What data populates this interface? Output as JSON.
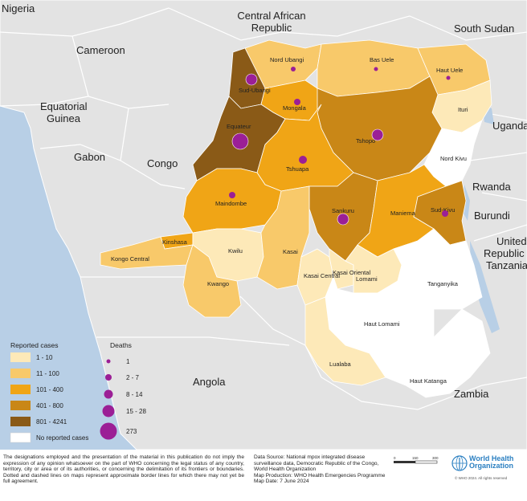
{
  "countries": {
    "nigeria": "Nigeria",
    "central_african_republic_l1": "Central African",
    "central_african_republic_l2": "Republic",
    "south_sudan": "South Sudan",
    "cameroon": "Cameroon",
    "equatorial_guinea_l1": "Equatorial",
    "equatorial_guinea_l2": "Guinea",
    "gabon": "Gabon",
    "congo": "Congo",
    "uganda": "Uganda",
    "rwanda": "Rwanda",
    "burundi": "Burundi",
    "tanzania_l1": "United",
    "tanzania_l2": "Republic of",
    "tanzania_l3": "Tanzania",
    "angola": "Angola",
    "zambia": "Zambia"
  },
  "provinces": [
    {
      "name": "Nord Ubangi",
      "cases_class": "11 - 100",
      "deaths_class": "1"
    },
    {
      "name": "Bas Uele",
      "cases_class": "11 - 100",
      "deaths_class": "1"
    },
    {
      "name": "Haut Uele",
      "cases_class": "11 - 100",
      "deaths_class": "1"
    },
    {
      "name": "Sud-Ubangi",
      "cases_class": "801 - 4241",
      "deaths_class": "15 - 28"
    },
    {
      "name": "Mongala",
      "cases_class": "101 - 400",
      "deaths_class": "2 - 7"
    },
    {
      "name": "Ituri",
      "cases_class": "1 - 10",
      "deaths_class": ""
    },
    {
      "name": "Equateur",
      "cases_class": "801 - 4241",
      "deaths_class": "273"
    },
    {
      "name": "Tshopo",
      "cases_class": "401 - 800",
      "deaths_class": "15 - 28"
    },
    {
      "name": "Nord Kivu",
      "cases_class": "No reported cases",
      "deaths_class": ""
    },
    {
      "name": "Tshuapa",
      "cases_class": "101 - 400",
      "deaths_class": "8 - 14"
    },
    {
      "name": "Maindombe",
      "cases_class": "101 - 400",
      "deaths_class": "2 - 7"
    },
    {
      "name": "Sankuru",
      "cases_class": "401 - 800",
      "deaths_class": "15 - 28"
    },
    {
      "name": "Maniema",
      "cases_class": "101 - 400",
      "deaths_class": ""
    },
    {
      "name": "Sud-Kivu",
      "cases_class": "401 - 800",
      "deaths_class": "2 - 7"
    },
    {
      "name": "Kinshasa",
      "cases_class": "101 - 400",
      "deaths_class": ""
    },
    {
      "name": "Kwilu",
      "cases_class": "1 - 10",
      "deaths_class": ""
    },
    {
      "name": "Kasai",
      "cases_class": "11 - 100",
      "deaths_class": ""
    },
    {
      "name": "Kongo Central",
      "cases_class": "11 - 100",
      "deaths_class": ""
    },
    {
      "name": "Kasai Central",
      "cases_class": "1 - 10",
      "deaths_class": ""
    },
    {
      "name": "Kasai Oriental",
      "cases_class": "1 - 10",
      "deaths_class": ""
    },
    {
      "name": "Lomami",
      "cases_class": "1 - 10",
      "deaths_class": ""
    },
    {
      "name": "Tanganyika",
      "cases_class": "No reported cases",
      "deaths_class": ""
    },
    {
      "name": "Kwango",
      "cases_class": "11 - 100",
      "deaths_class": ""
    },
    {
      "name": "Haut Lomami",
      "cases_class": "No reported cases",
      "deaths_class": ""
    },
    {
      "name": "Lualaba",
      "cases_class": "1 - 10",
      "deaths_class": ""
    },
    {
      "name": "Haut Katanga",
      "cases_class": "No reported cases",
      "deaths_class": ""
    }
  ],
  "legend": {
    "cases_title": "Reported cases",
    "cases_items": [
      {
        "label": "1 - 10",
        "color": "#fde9b8"
      },
      {
        "label": "11 - 100",
        "color": "#f8c96a"
      },
      {
        "label": "101 - 400",
        "color": "#f0a516"
      },
      {
        "label": "401 - 800",
        "color": "#c98717"
      },
      {
        "label": "801 - 4241",
        "color": "#8a5a17"
      },
      {
        "label": "No reported cases",
        "color": "#ffffff"
      }
    ],
    "deaths_title": "Deaths",
    "deaths_items": [
      {
        "label": "1"
      },
      {
        "label": "2 - 7"
      },
      {
        "label": "8 - 14"
      },
      {
        "label": "15 - 28"
      },
      {
        "label": "273"
      }
    ],
    "death_color": "#9b1f96"
  },
  "footer": {
    "disclaimer": "The designations employed and the presentation of the material in this publication do not imply the expression of any opinion whatsoever on the part of WHO concerning the legal status of any country, territory, city or area or of its authorities, or concerning the delimitation of its frontiers or boundaries. Dotted and dashed lines on maps represent approximate border lines for which there may not yet be full agreement.",
    "source_l1": "Data Source: National mpox integrated disease surveillance data, Democratic Republic of the Congo, World Health Organization",
    "source_l2": "Map Production: WHO Health Emergencies Programme",
    "source_l3": "Map Date: 7 June 2024",
    "who_name_l1": "World Health",
    "who_name_l2": "Organization",
    "who_copyright": "© WHO 2024. All rights reserved",
    "scale_labels": [
      "0",
      "150",
      "300"
    ]
  },
  "colors": {
    "water": "#b8cfe6",
    "land": "#e3e3e3",
    "border": "#ffffff"
  }
}
